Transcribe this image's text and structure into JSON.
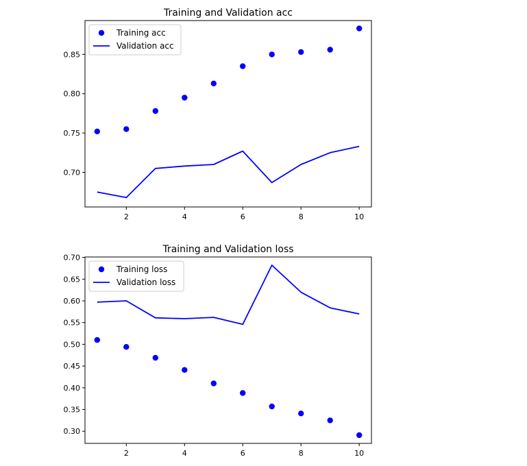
{
  "chart_data": [
    {
      "type": "line",
      "title": "Training and Validation acc",
      "xlabel": "",
      "ylabel": "",
      "xlim": [
        0.58,
        10.42
      ],
      "ylim": [
        0.656,
        0.893
      ],
      "xticks": [
        2,
        4,
        6,
        8,
        10
      ],
      "yticks": [
        0.7,
        0.75,
        0.8,
        0.85
      ],
      "grid": false,
      "legend": "top-left",
      "x": [
        1,
        2,
        3,
        4,
        5,
        6,
        7,
        8,
        9,
        10
      ],
      "series": [
        {
          "name": "Training acc",
          "style": "points",
          "color": "#0000ff",
          "values": [
            0.752,
            0.755,
            0.778,
            0.795,
            0.813,
            0.835,
            0.85,
            0.853,
            0.856,
            0.883
          ]
        },
        {
          "name": "Validation acc",
          "style": "line",
          "color": "#0000ff",
          "values": [
            0.675,
            0.668,
            0.705,
            0.708,
            0.71,
            0.727,
            0.687,
            0.71,
            0.725,
            0.733
          ]
        }
      ]
    },
    {
      "type": "line",
      "title": "Training and Validation loss",
      "xlabel": "",
      "ylabel": "",
      "xlim": [
        0.58,
        10.42
      ],
      "ylim": [
        0.272,
        0.701
      ],
      "xticks": [
        2,
        4,
        6,
        8,
        10
      ],
      "yticks": [
        0.3,
        0.35,
        0.4,
        0.45,
        0.5,
        0.55,
        0.6,
        0.65,
        0.7
      ],
      "grid": false,
      "legend": "top-left",
      "x": [
        1,
        2,
        3,
        4,
        5,
        6,
        7,
        8,
        9,
        10
      ],
      "series": [
        {
          "name": "Training loss",
          "style": "points",
          "color": "#0000ff",
          "values": [
            0.51,
            0.494,
            0.469,
            0.441,
            0.41,
            0.388,
            0.357,
            0.341,
            0.325,
            0.291
          ]
        },
        {
          "name": "Validation loss",
          "style": "line",
          "color": "#0000ff",
          "values": [
            0.597,
            0.6,
            0.561,
            0.559,
            0.562,
            0.546,
            0.682,
            0.62,
            0.584,
            0.57
          ]
        }
      ]
    }
  ]
}
